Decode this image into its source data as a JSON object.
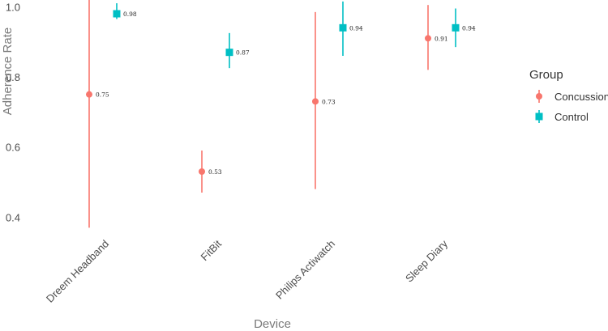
{
  "chart_data": {
    "type": "scatter",
    "title": "",
    "xlabel": "Device",
    "ylabel": "Adherence Rate",
    "categories": [
      "Dreem Headband",
      "FitBit",
      "Philips Actiwatch",
      "Sleep Diary"
    ],
    "ylim": [
      0.35,
      1.01
    ],
    "yticks": [
      "0.4",
      "0.6",
      "0.8",
      "1.0"
    ],
    "grid": false,
    "legend": {
      "title": "Group",
      "position": "right"
    },
    "series": [
      {
        "name": "Concussion",
        "color": "#F8766D",
        "marker": "circle",
        "values": [
          0.75,
          0.53,
          0.73,
          0.91
        ],
        "labels": [
          "0.75",
          "0.53",
          "0.73",
          "0.91"
        ],
        "ci_low": [
          0.37,
          0.47,
          0.48,
          0.82
        ],
        "ci_high": [
          1.02,
          0.59,
          0.985,
          1.005
        ]
      },
      {
        "name": "Control",
        "color": "#00BFC4",
        "marker": "square",
        "values": [
          0.98,
          0.87,
          0.94,
          0.94
        ],
        "labels": [
          "0.98",
          "0.87",
          "0.94",
          "0.94"
        ],
        "ci_low": [
          0.965,
          0.825,
          0.86,
          0.885
        ],
        "ci_high": [
          1.01,
          0.925,
          1.015,
          0.995
        ]
      }
    ]
  }
}
